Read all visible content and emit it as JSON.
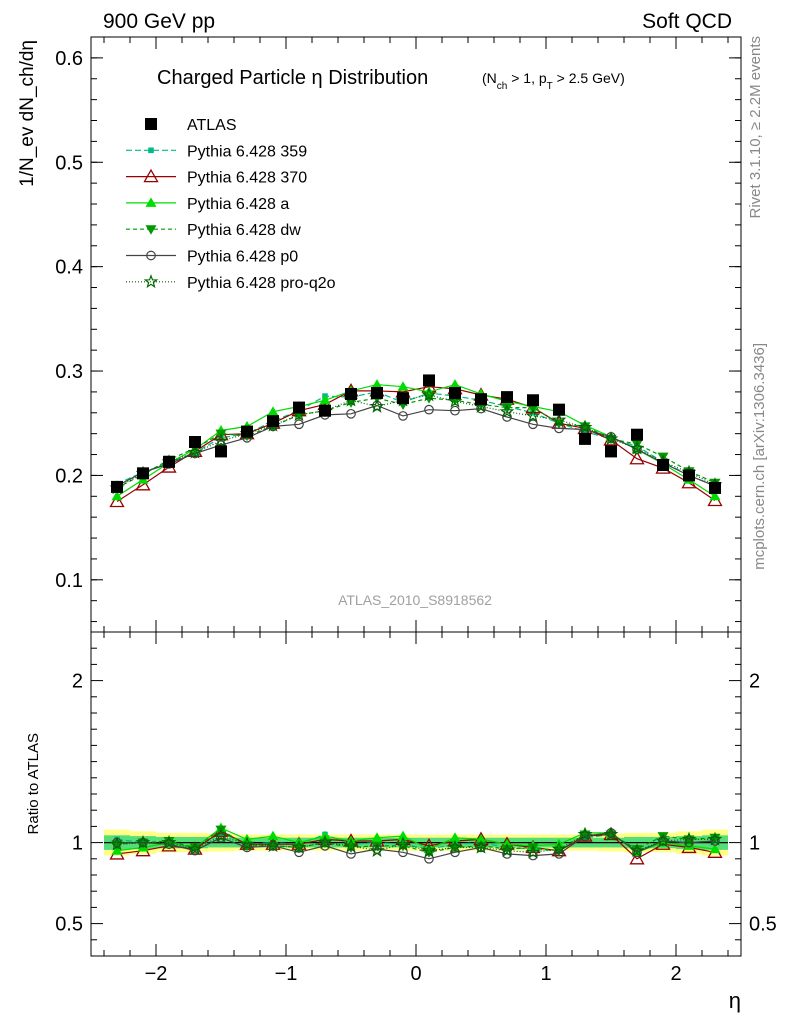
{
  "header": {
    "left": "900 GeV pp",
    "right": "Soft QCD"
  },
  "side_text": {
    "rivet": "Rivet 3.1.10, ≥ 2.2M events",
    "mcplots": "mcplots.cern.ch [arXiv:1306.3436]"
  },
  "chart_data": [
    {
      "type": "line",
      "title": "Charged Particle η Distribution",
      "title_cuts": "(N_ch > 1, p_T > 2.5 GeV)",
      "analysis_label": "ATLAS_2010_S8918562",
      "ylabel": "1/N_ev dN_ch/dη",
      "xlabel": "η",
      "xlim": [
        -2.5,
        2.5
      ],
      "ylim": [
        0.05,
        0.62
      ],
      "yticks": [
        0.1,
        0.2,
        0.3,
        0.4,
        0.5,
        0.6
      ],
      "xticks": [
        -2,
        -1,
        0,
        1,
        2
      ],
      "legend_position": "top-left",
      "x": [
        -2.3,
        -2.1,
        -1.9,
        -1.7,
        -1.5,
        -1.3,
        -1.1,
        -0.9,
        -0.7,
        -0.5,
        -0.3,
        -0.1,
        0.1,
        0.3,
        0.5,
        0.7,
        0.9,
        1.1,
        1.3,
        1.5,
        1.7,
        1.9,
        2.1,
        2.3
      ],
      "series": [
        {
          "name": "ATLAS",
          "color": "#000000",
          "marker": "square",
          "dash": "none",
          "values": [
            0.189,
            0.202,
            0.213,
            0.232,
            0.223,
            0.242,
            0.252,
            0.265,
            0.262,
            0.278,
            0.279,
            0.274,
            0.291,
            0.279,
            0.273,
            0.275,
            0.272,
            0.263,
            0.235,
            0.223,
            0.239,
            0.21,
            0.2,
            0.188
          ]
        },
        {
          "name": "Pythia 6.428 359",
          "color": "#00bb88",
          "marker": "small-square",
          "dash": "6,3",
          "values": [
            0.192,
            0.203,
            0.212,
            0.222,
            0.236,
            0.24,
            0.252,
            0.262,
            0.276,
            0.275,
            0.28,
            0.27,
            0.279,
            0.276,
            0.272,
            0.266,
            0.26,
            0.25,
            0.242,
            0.235,
            0.228,
            0.213,
            0.2,
            0.19
          ]
        },
        {
          "name": "Pythia 6.428 370",
          "color": "#990000",
          "marker": "open-triangle",
          "dash": "none",
          "values": [
            0.175,
            0.191,
            0.208,
            0.223,
            0.239,
            0.24,
            0.25,
            0.262,
            0.268,
            0.281,
            0.281,
            0.28,
            0.285,
            0.283,
            0.277,
            0.273,
            0.265,
            0.25,
            0.245,
            0.234,
            0.216,
            0.207,
            0.193,
            0.176
          ]
        },
        {
          "name": "Pythia 6.428 a",
          "color": "#00dd00",
          "marker": "triangle",
          "dash": "none",
          "values": [
            0.18,
            0.196,
            0.212,
            0.225,
            0.243,
            0.247,
            0.261,
            0.266,
            0.272,
            0.281,
            0.287,
            0.285,
            0.28,
            0.287,
            0.278,
            0.271,
            0.266,
            0.261,
            0.248,
            0.237,
            0.225,
            0.211,
            0.196,
            0.18
          ]
        },
        {
          "name": "Pythia 6.428 dw",
          "color": "#009900",
          "marker": "triangle-down",
          "dash": "4,3",
          "values": [
            0.188,
            0.201,
            0.215,
            0.226,
            0.24,
            0.238,
            0.247,
            0.258,
            0.262,
            0.27,
            0.274,
            0.268,
            0.274,
            0.272,
            0.268,
            0.265,
            0.265,
            0.25,
            0.247,
            0.235,
            0.23,
            0.218,
            0.204,
            0.193
          ]
        },
        {
          "name": "Pythia 6.428 p0",
          "color": "#444444",
          "marker": "open-circle",
          "dash": "none",
          "values": [
            0.19,
            0.203,
            0.211,
            0.221,
            0.229,
            0.236,
            0.247,
            0.249,
            0.258,
            0.259,
            0.267,
            0.257,
            0.263,
            0.262,
            0.264,
            0.256,
            0.249,
            0.245,
            0.244,
            0.237,
            0.225,
            0.212,
            0.2,
            0.19
          ]
        },
        {
          "name": "Pythia 6.428 pro-q2o",
          "color": "#006600",
          "marker": "star",
          "dash": "1,2",
          "values": [
            0.188,
            0.202,
            0.213,
            0.222,
            0.233,
            0.24,
            0.248,
            0.258,
            0.262,
            0.272,
            0.266,
            0.272,
            0.277,
            0.271,
            0.266,
            0.261,
            0.257,
            0.253,
            0.246,
            0.235,
            0.226,
            0.213,
            0.203,
            0.191
          ]
        }
      ]
    },
    {
      "type": "line",
      "ylabel": "Ratio to ATLAS",
      "xlabel": "η",
      "xlim": [
        -2.5,
        2.5
      ],
      "ylim": [
        0.3,
        2.3
      ],
      "yticks": [
        0.5,
        1,
        2
      ],
      "xticks": [
        -2,
        -1,
        0,
        1,
        2
      ],
      "band_inner_color": "#55dd77",
      "band_outer_color": "#ffff88",
      "band_inner_halfwidth": [
        0.045,
        0.04,
        0.035,
        0.035,
        0.03,
        0.03,
        0.03,
        0.03,
        0.03,
        0.03,
        0.03,
        0.03,
        0.03,
        0.03,
        0.03,
        0.03,
        0.03,
        0.03,
        0.03,
        0.03,
        0.035,
        0.035,
        0.04,
        0.045
      ],
      "band_outer_halfwidth": [
        0.08,
        0.07,
        0.06,
        0.06,
        0.055,
        0.05,
        0.05,
        0.05,
        0.05,
        0.05,
        0.05,
        0.05,
        0.05,
        0.05,
        0.05,
        0.05,
        0.05,
        0.05,
        0.05,
        0.055,
        0.06,
        0.06,
        0.07,
        0.08
      ],
      "series": [
        {
          "name": "Pythia 6.428 359",
          "values": [
            1.02,
            1.0,
            0.99,
            0.96,
            1.06,
            0.99,
            1.0,
            0.99,
            1.05,
            0.99,
            1.0,
            0.99,
            0.96,
            0.99,
            1.0,
            0.97,
            0.96,
            0.95,
            1.03,
            1.05,
            0.95,
            1.01,
            1.0,
            1.01
          ]
        },
        {
          "name": "Pythia 6.428 370",
          "values": [
            0.93,
            0.95,
            0.98,
            0.96,
            1.07,
            0.99,
            0.99,
            0.99,
            1.02,
            1.01,
            1.01,
            1.02,
            0.98,
            1.01,
            1.02,
            0.99,
            0.97,
            0.95,
            1.04,
            1.05,
            0.9,
            0.99,
            0.97,
            0.94
          ]
        },
        {
          "name": "Pythia 6.428 a",
          "values": [
            0.95,
            0.97,
            1.0,
            0.97,
            1.09,
            1.02,
            1.04,
            1.0,
            1.04,
            1.01,
            1.03,
            1.04,
            0.96,
            1.03,
            1.02,
            0.99,
            0.98,
            0.99,
            1.06,
            1.06,
            0.94,
            1.0,
            0.98,
            0.96
          ]
        },
        {
          "name": "Pythia 6.428 dw",
          "values": [
            0.99,
            1.0,
            1.01,
            0.97,
            1.08,
            0.98,
            0.98,
            0.97,
            1.0,
            0.97,
            0.98,
            0.98,
            0.94,
            0.97,
            0.98,
            0.96,
            0.97,
            0.95,
            1.05,
            1.05,
            0.96,
            1.04,
            1.02,
            1.03
          ]
        },
        {
          "name": "Pythia 6.428 p0",
          "values": [
            1.0,
            1.0,
            0.99,
            0.95,
            1.03,
            0.97,
            0.98,
            0.94,
            0.98,
            0.93,
            0.96,
            0.94,
            0.9,
            0.94,
            0.97,
            0.93,
            0.92,
            0.93,
            1.04,
            1.06,
            0.94,
            1.01,
            1.0,
            1.01
          ]
        },
        {
          "name": "Pythia 6.428 pro-q2o",
          "values": [
            0.99,
            1.0,
            1.0,
            0.96,
            1.04,
            0.99,
            0.98,
            0.97,
            1.0,
            0.98,
            0.95,
            0.99,
            0.95,
            0.97,
            0.97,
            0.95,
            0.94,
            0.96,
            1.05,
            1.05,
            0.95,
            1.01,
            1.02,
            1.02
          ]
        }
      ]
    }
  ]
}
